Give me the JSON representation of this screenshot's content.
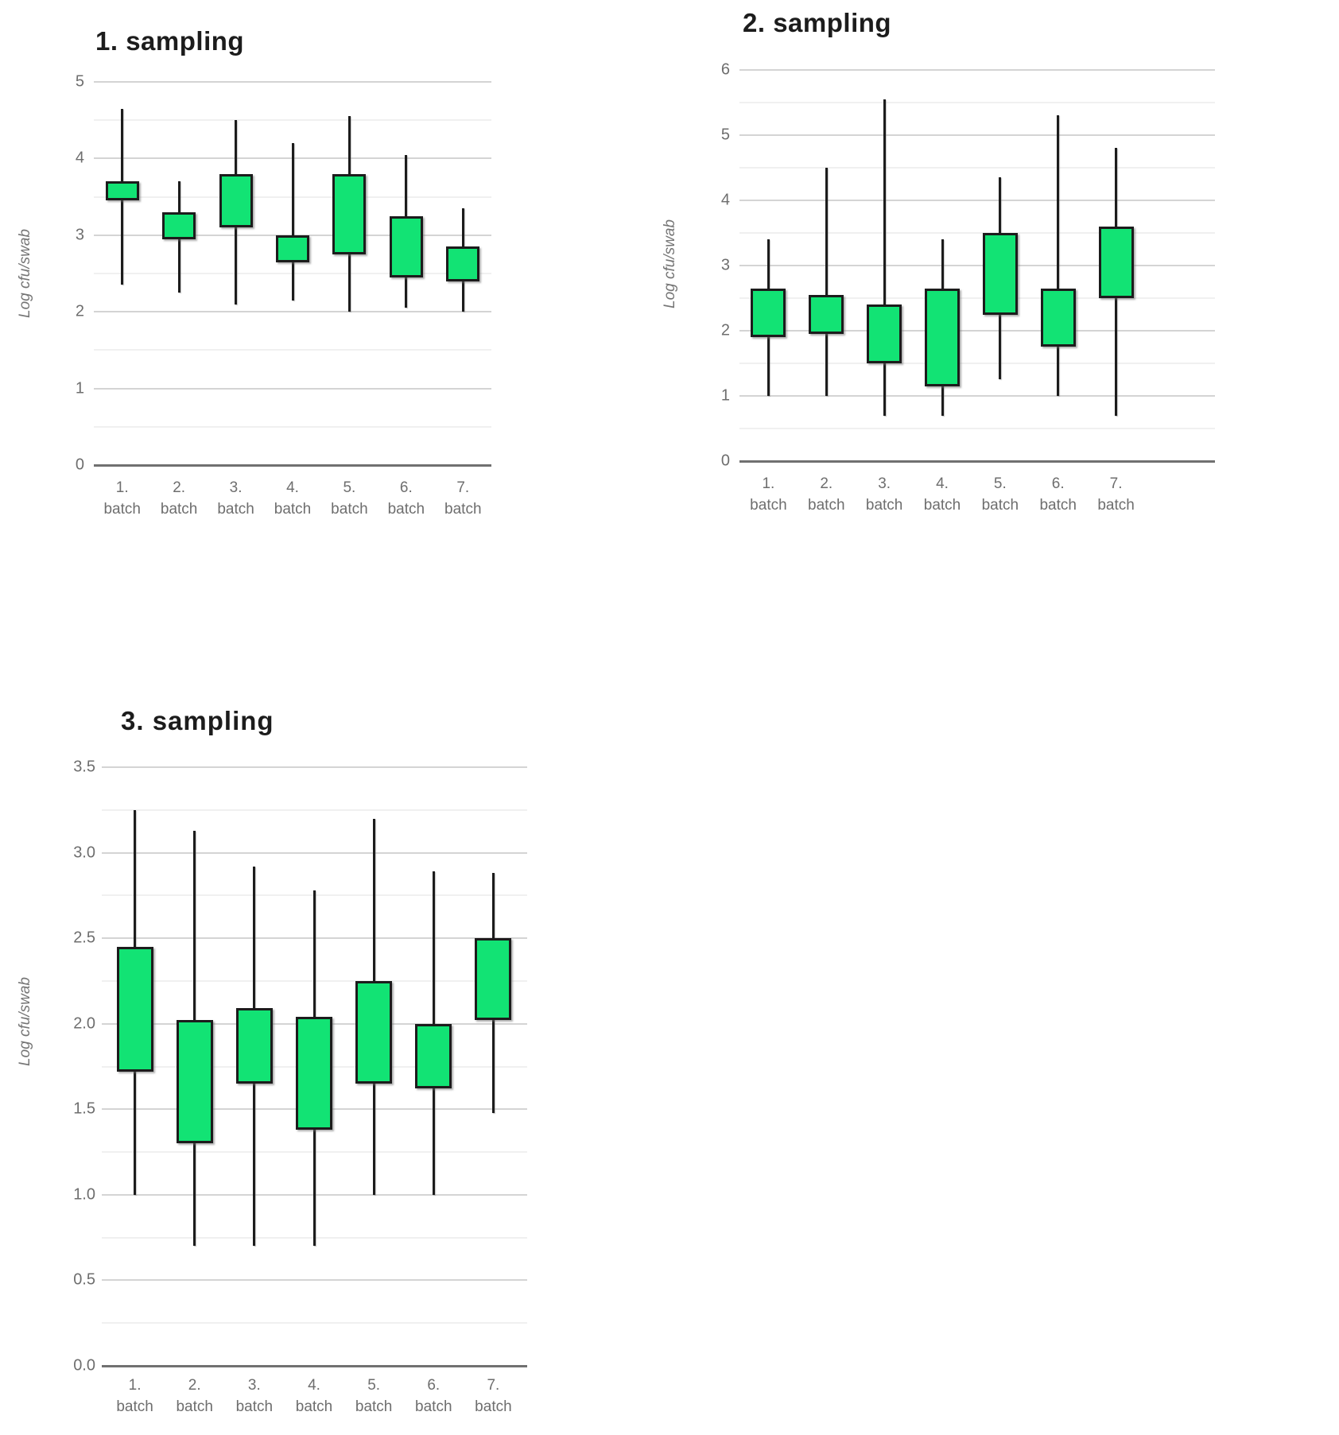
{
  "colors": {
    "box_fill": "#12e374",
    "box_border": "#1c1c1c",
    "grid_minor": "#f0f0f0",
    "grid_major": "#d4d4d4",
    "zero_axis": "#707070",
    "tick_text": "#6e6e6e",
    "title_text": "#1c1c1c"
  },
  "chart_data": [
    {
      "type": "candlestick",
      "title": "1. sampling",
      "ylabel": "Log cfu/swab",
      "ylim": [
        0,
        5
      ],
      "grid_step": 0.5,
      "label_step": 1,
      "tick_decimals": 0,
      "grid": true,
      "legend": "none",
      "batches": [
        {
          "label_line1": "1.",
          "label_line2": "batch",
          "whisker_low": 2.35,
          "box_low": 3.45,
          "box_high": 3.7,
          "whisker_high": 4.65
        },
        {
          "label_line1": "2.",
          "label_line2": "batch",
          "whisker_low": 2.25,
          "box_low": 2.95,
          "box_high": 3.3,
          "whisker_high": 3.7
        },
        {
          "label_line1": "3.",
          "label_line2": "batch",
          "whisker_low": 2.1,
          "box_low": 3.1,
          "box_high": 3.8,
          "whisker_high": 4.5
        },
        {
          "label_line1": "4.",
          "label_line2": "batch",
          "whisker_low": 2.15,
          "box_low": 2.65,
          "box_high": 3.0,
          "whisker_high": 4.2
        },
        {
          "label_line1": "5.",
          "label_line2": "batch",
          "whisker_low": 2.0,
          "box_low": 2.75,
          "box_high": 3.8,
          "whisker_high": 4.55
        },
        {
          "label_line1": "6.",
          "label_line2": "batch",
          "whisker_low": 2.05,
          "box_low": 2.45,
          "box_high": 3.25,
          "whisker_high": 4.05
        },
        {
          "label_line1": "7.",
          "label_line2": "batch",
          "whisker_low": 2.0,
          "box_low": 2.4,
          "box_high": 2.85,
          "whisker_high": 3.35
        }
      ]
    },
    {
      "type": "candlestick",
      "title": "2. sampling",
      "ylabel": "Log cfu/swab",
      "ylim": [
        0,
        6
      ],
      "grid_step": 0.5,
      "label_step": 1,
      "tick_decimals": 0,
      "grid": true,
      "legend": "none",
      "batches": [
        {
          "label_line1": "1.",
          "label_line2": "batch",
          "whisker_low": 1.0,
          "box_low": 1.9,
          "box_high": 2.65,
          "whisker_high": 3.4
        },
        {
          "label_line1": "2.",
          "label_line2": "batch",
          "whisker_low": 1.0,
          "box_low": 1.95,
          "box_high": 2.55,
          "whisker_high": 4.5
        },
        {
          "label_line1": "3.",
          "label_line2": "batch",
          "whisker_low": 0.7,
          "box_low": 1.5,
          "box_high": 2.4,
          "whisker_high": 5.55
        },
        {
          "label_line1": "4.",
          "label_line2": "batch",
          "whisker_low": 0.7,
          "box_low": 1.15,
          "box_high": 2.65,
          "whisker_high": 3.4
        },
        {
          "label_line1": "5.",
          "label_line2": "batch",
          "whisker_low": 1.25,
          "box_low": 2.25,
          "box_high": 3.5,
          "whisker_high": 4.35
        },
        {
          "label_line1": "6.",
          "label_line2": "batch",
          "whisker_low": 1.0,
          "box_low": 1.75,
          "box_high": 2.65,
          "whisker_high": 5.3
        },
        {
          "label_line1": "7.",
          "label_line2": "batch",
          "whisker_low": 0.7,
          "box_low": 2.5,
          "box_high": 3.6,
          "whisker_high": 4.8
        }
      ]
    },
    {
      "type": "candlestick",
      "title": "3. sampling",
      "ylabel": "Log cfu/swab",
      "ylim": [
        0,
        3.5
      ],
      "grid_step": 0.25,
      "label_step": 0.5,
      "tick_decimals": 1,
      "grid": true,
      "legend": "none",
      "batches": [
        {
          "label_line1": "1.",
          "label_line2": "batch",
          "whisker_low": 1.0,
          "box_low": 1.72,
          "box_high": 2.45,
          "whisker_high": 3.25
        },
        {
          "label_line1": "2.",
          "label_line2": "batch",
          "whisker_low": 0.7,
          "box_low": 1.3,
          "box_high": 2.02,
          "whisker_high": 3.13
        },
        {
          "label_line1": "3.",
          "label_line2": "batch",
          "whisker_low": 0.7,
          "box_low": 1.65,
          "box_high": 2.09,
          "whisker_high": 2.92
        },
        {
          "label_line1": "4.",
          "label_line2": "batch",
          "whisker_low": 0.7,
          "box_low": 1.38,
          "box_high": 2.04,
          "whisker_high": 2.78
        },
        {
          "label_line1": "5.",
          "label_line2": "batch",
          "whisker_low": 1.0,
          "box_low": 1.65,
          "box_high": 2.25,
          "whisker_high": 3.2
        },
        {
          "label_line1": "6.",
          "label_line2": "batch",
          "whisker_low": 1.0,
          "box_low": 1.62,
          "box_high": 2.0,
          "whisker_high": 2.89
        },
        {
          "label_line1": "7.",
          "label_line2": "batch",
          "whisker_low": 1.48,
          "box_low": 2.02,
          "box_high": 2.5,
          "whisker_high": 2.88
        }
      ]
    }
  ]
}
